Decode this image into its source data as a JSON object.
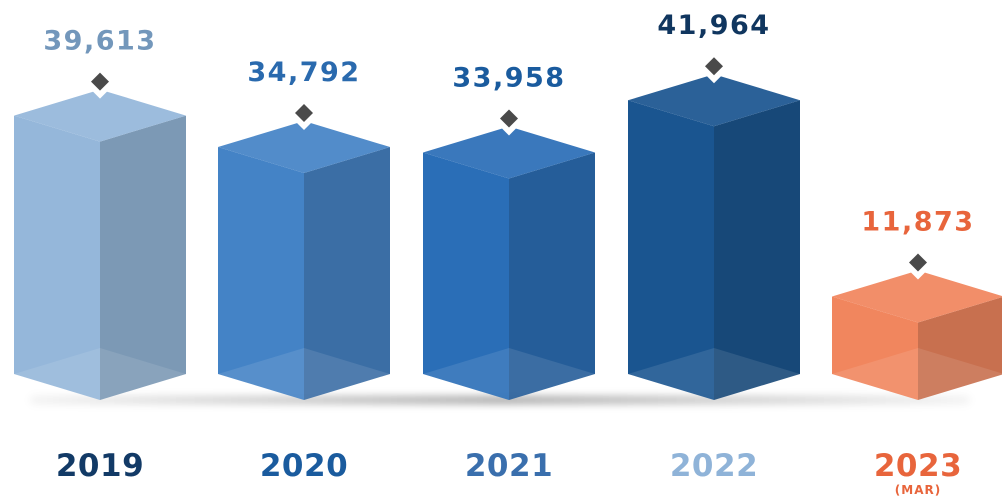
{
  "chart_data": {
    "type": "bar",
    "categories": [
      "2019",
      "2020",
      "2021",
      "2022",
      "2023"
    ],
    "category_sublabels": [
      "",
      "",
      "",
      "",
      "(MAR)"
    ],
    "values": [
      39613,
      34792,
      33958,
      41964,
      11873
    ],
    "value_labels": [
      "39,613",
      "34,792",
      "33,958",
      "41,964",
      "11,873"
    ],
    "bar_colors": [
      "#8fb3d8",
      "#3a7cc3",
      "#1f66b3",
      "#0e4c8a",
      "#f07f55"
    ],
    "value_label_colors": [
      "#7397bb",
      "#2a6aae",
      "#1a5b9e",
      "#10365f",
      "#e8653c"
    ],
    "category_label_colors": [
      "#123a66",
      "#1a5b9e",
      "#3a6fad",
      "#8fb3d8",
      "#e8653c"
    ],
    "marker_color": "#4a4a4a"
  }
}
